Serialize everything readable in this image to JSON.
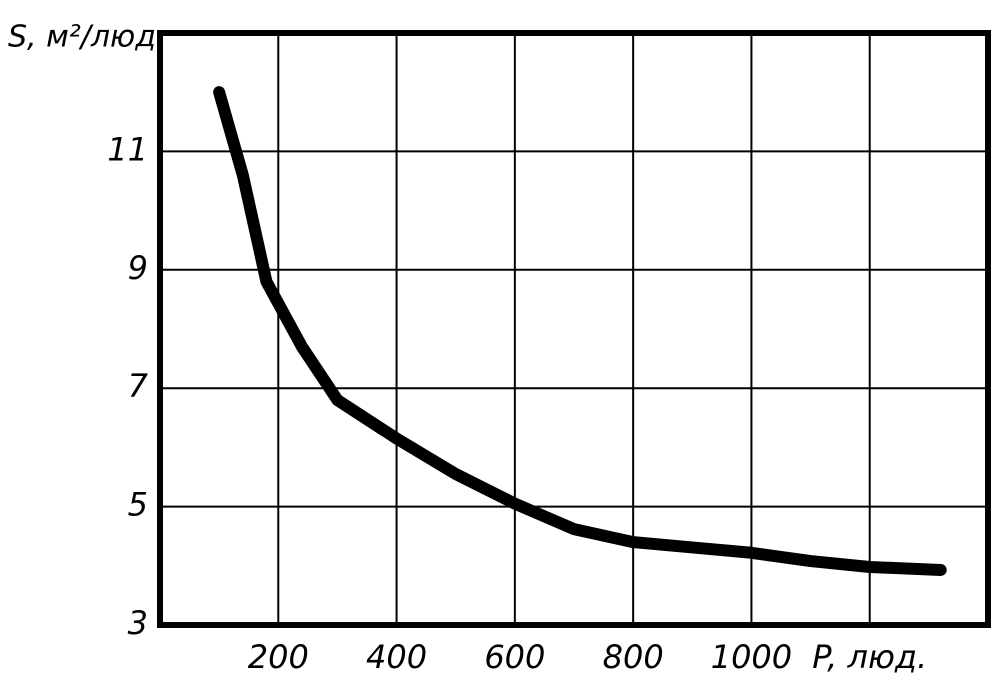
{
  "chart_data": {
    "type": "line",
    "y_label": "S, м²/люд.",
    "x": [
      100,
      140,
      180,
      240,
      300,
      400,
      500,
      600,
      700,
      800,
      900,
      1000,
      1100,
      1200,
      1320
    ],
    "series": [
      {
        "color": "#000000",
        "values": [
          12.0,
          10.6,
          8.8,
          7.7,
          6.8,
          6.15,
          5.55,
          5.05,
          4.62,
          4.4,
          4.31,
          4.22,
          4.08,
          3.98,
          3.93
        ]
      }
    ],
    "xlim": [
      0,
      1400
    ],
    "xticks": [
      200,
      400,
      600,
      800,
      1000,
      {
        "value": 1200,
        "label": "P, люд."
      }
    ],
    "ylim": [
      3,
      13
    ],
    "yticks": [
      3,
      5,
      7,
      9,
      11
    ],
    "grid": true
  }
}
